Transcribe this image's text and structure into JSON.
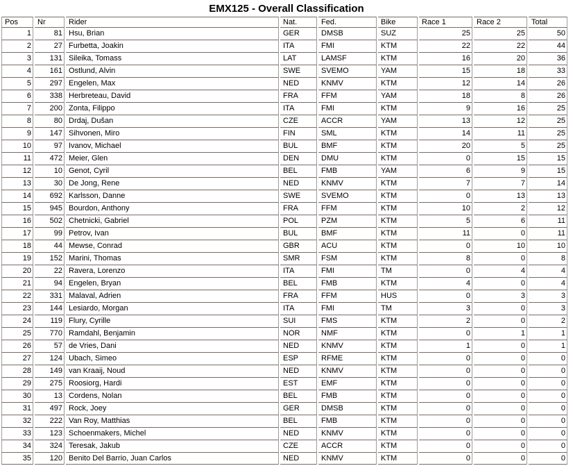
{
  "page_title": "EMX125 - Overall Classification",
  "colors": {
    "horizontal_border": "#7b6a61",
    "vertical_border": "#9d9d9d",
    "text": "#000000",
    "background": "#ffffff"
  },
  "table": {
    "columns": [
      {
        "key": "pos",
        "label": "Pos"
      },
      {
        "key": "nr",
        "label": "Nr"
      },
      {
        "key": "rider",
        "label": "Rider"
      },
      {
        "key": "nat",
        "label": "Nat."
      },
      {
        "key": "fed",
        "label": "Fed."
      },
      {
        "key": "bike",
        "label": "Bike"
      },
      {
        "key": "race1",
        "label": "Race 1"
      },
      {
        "key": "race2",
        "label": "Race 2"
      },
      {
        "key": "total",
        "label": "Total"
      }
    ],
    "rows": [
      [
        "1",
        "81",
        "Hsu, Brian",
        "GER",
        "DMSB",
        "SUZ",
        "25",
        "25",
        "50"
      ],
      [
        "2",
        "27",
        "Furbetta, Joakin",
        "ITA",
        "FMI",
        "KTM",
        "22",
        "22",
        "44"
      ],
      [
        "3",
        "131",
        "Sileika, Tomass",
        "LAT",
        "LAMSF",
        "KTM",
        "16",
        "20",
        "36"
      ],
      [
        "4",
        "161",
        "Ostlund, Alvin",
        "SWE",
        "SVEMO",
        "YAM",
        "15",
        "18",
        "33"
      ],
      [
        "5",
        "297",
        "Engelen, Max",
        "NED",
        "KNMV",
        "KTM",
        "12",
        "14",
        "26"
      ],
      [
        "6",
        "338",
        "Herbreteau, David",
        "FRA",
        "FFM",
        "YAM",
        "18",
        "8",
        "26"
      ],
      [
        "7",
        "200",
        "Zonta, Filippo",
        "ITA",
        "FMI",
        "KTM",
        "9",
        "16",
        "25"
      ],
      [
        "8",
        "80",
        "Drdaj, Dušan",
        "CZE",
        "ACCR",
        "YAM",
        "13",
        "12",
        "25"
      ],
      [
        "9",
        "147",
        "Sihvonen, Miro",
        "FIN",
        "SML",
        "KTM",
        "14",
        "11",
        "25"
      ],
      [
        "10",
        "97",
        "Ivanov, Michael",
        "BUL",
        "BMF",
        "KTM",
        "20",
        "5",
        "25"
      ],
      [
        "11",
        "472",
        "Meier, Glen",
        "DEN",
        "DMU",
        "KTM",
        "0",
        "15",
        "15"
      ],
      [
        "12",
        "10",
        "Genot, Cyril",
        "BEL",
        "FMB",
        "YAM",
        "6",
        "9",
        "15"
      ],
      [
        "13",
        "30",
        "De Jong, Rene",
        "NED",
        "KNMV",
        "KTM",
        "7",
        "7",
        "14"
      ],
      [
        "14",
        "692",
        "Karlsson, Danne",
        "SWE",
        "SVEMO",
        "KTM",
        "0",
        "13",
        "13"
      ],
      [
        "15",
        "945",
        "Bourdon, Anthony",
        "FRA",
        "FFM",
        "KTM",
        "10",
        "2",
        "12"
      ],
      [
        "16",
        "502",
        "Chetnicki, Gabriel",
        "POL",
        "PZM",
        "KTM",
        "5",
        "6",
        "11"
      ],
      [
        "17",
        "99",
        "Petrov, Ivan",
        "BUL",
        "BMF",
        "KTM",
        "11",
        "0",
        "11"
      ],
      [
        "18",
        "44",
        "Mewse, Conrad",
        "GBR",
        "ACU",
        "KTM",
        "0",
        "10",
        "10"
      ],
      [
        "19",
        "152",
        "Marini, Thomas",
        "SMR",
        "FSM",
        "KTM",
        "8",
        "0",
        "8"
      ],
      [
        "20",
        "22",
        "Ravera, Lorenzo",
        "ITA",
        "FMI",
        "TM",
        "0",
        "4",
        "4"
      ],
      [
        "21",
        "94",
        "Engelen, Bryan",
        "BEL",
        "FMB",
        "KTM",
        "4",
        "0",
        "4"
      ],
      [
        "22",
        "331",
        "Malaval, Adrien",
        "FRA",
        "FFM",
        "HUS",
        "0",
        "3",
        "3"
      ],
      [
        "23",
        "144",
        "Lesiardo, Morgan",
        "ITA",
        "FMI",
        "TM",
        "3",
        "0",
        "3"
      ],
      [
        "24",
        "119",
        "Flury, Cyrille",
        "SUI",
        "FMS",
        "KTM",
        "2",
        "0",
        "2"
      ],
      [
        "25",
        "770",
        "Ramdahl, Benjamin",
        "NOR",
        "NMF",
        "KTM",
        "0",
        "1",
        "1"
      ],
      [
        "26",
        "57",
        "de Vries, Dani",
        "NED",
        "KNMV",
        "KTM",
        "1",
        "0",
        "1"
      ],
      [
        "27",
        "124",
        "Ubach, Simeo",
        "ESP",
        "RFME",
        "KTM",
        "0",
        "0",
        "0"
      ],
      [
        "28",
        "149",
        "van Kraaij, Noud",
        "NED",
        "KNMV",
        "KTM",
        "0",
        "0",
        "0"
      ],
      [
        "29",
        "275",
        "Roosiorg, Hardi",
        "EST",
        "EMF",
        "KTM",
        "0",
        "0",
        "0"
      ],
      [
        "30",
        "13",
        "Cordens, Nolan",
        "BEL",
        "FMB",
        "KTM",
        "0",
        "0",
        "0"
      ],
      [
        "31",
        "497",
        "Rock, Joey",
        "GER",
        "DMSB",
        "KTM",
        "0",
        "0",
        "0"
      ],
      [
        "32",
        "222",
        "Van Roy, Matthias",
        "BEL",
        "FMB",
        "KTM",
        "0",
        "0",
        "0"
      ],
      [
        "33",
        "123",
        "Schoenmakers, Michel",
        "NED",
        "KNMV",
        "KTM",
        "0",
        "0",
        "0"
      ],
      [
        "34",
        "324",
        "Teresak, Jakub",
        "CZE",
        "ACCR",
        "KTM",
        "0",
        "0",
        "0"
      ],
      [
        "35",
        "120",
        "Benito Del Barrio, Juan Carlos",
        "NED",
        "KNMV",
        "KTM",
        "0",
        "0",
        "0"
      ]
    ]
  }
}
